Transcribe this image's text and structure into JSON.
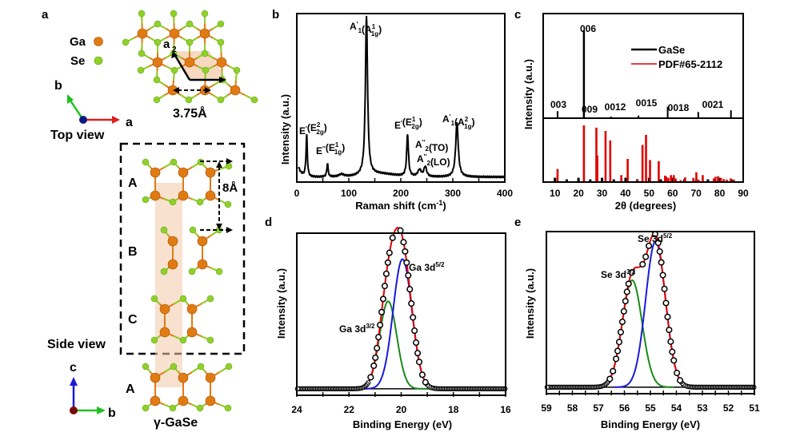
{
  "figure": {
    "panel_labels": [
      "a",
      "b",
      "c",
      "d",
      "e"
    ]
  },
  "panel_a": {
    "legend": [
      {
        "label": "Ga",
        "color": "#e07b14"
      },
      {
        "label": "Se",
        "color": "#8fd12a"
      }
    ],
    "top_view": {
      "lattice_vector_label": "a",
      "lattice_vector_sub": "2",
      "lattice_constant": "3.75Å",
      "axes": {
        "b": "b",
        "a": "a"
      },
      "caption": "Top view"
    },
    "side_view": {
      "layers": [
        "A",
        "B",
        "C",
        "A"
      ],
      "spacing": "8Å",
      "caption": "Side view",
      "axes": {
        "c": "c",
        "b": "b"
      },
      "phase": "γ-GaSe"
    },
    "colors": {
      "ga": "#e07b14",
      "se": "#8fd12a",
      "cell": "#f4c9a8",
      "axis_a": "#e02020",
      "axis_b": "#22c022",
      "axis_c": "#1a1ad8",
      "origin_top": "#0a1a80",
      "origin_side": "#7a0a0a"
    }
  },
  "chart_data": [
    {
      "id": "b",
      "type": "line",
      "title": "",
      "xlabel": "Raman shift (cm⁻¹)",
      "ylabel": "Intensity (a.u.)",
      "xlim": [
        0,
        400
      ],
      "xticks": [
        0,
        100,
        200,
        300,
        400
      ],
      "minor_xticks": [
        50,
        150,
        250,
        350
      ],
      "ylim": [
        0,
        1
      ],
      "grid": false,
      "series": [
        {
          "name": "Raman",
          "color": "#000000",
          "baseline": 0.03,
          "peaks": [
            {
              "x": 19,
              "height": 0.25,
              "width": 1.5
            },
            {
              "x": 59,
              "height": 0.08,
              "width": 1.5
            },
            {
              "x": 86,
              "height": 0.015,
              "width": 6
            },
            {
              "x": 134,
              "height": 0.94,
              "width": 2.5
            },
            {
              "x": 213,
              "height": 0.25,
              "width": 2
            },
            {
              "x": 236,
              "height": 0.04,
              "width": 4
            },
            {
              "x": 247,
              "height": 0.06,
              "width": 3
            },
            {
              "x": 308,
              "height": 0.32,
              "width": 3
            }
          ]
        }
      ],
      "annotations": [
        {
          "x": 19,
          "main": "E",
          "prime": "'",
          "paren": "E",
          "sup": "2",
          "sub": "2g"
        },
        {
          "x": 59,
          "main": "E",
          "prime": "''",
          "paren": "E",
          "sup": "1",
          "sub": "1g"
        },
        {
          "x": 134,
          "main": "A",
          "mainsub": "1",
          "prime": "'",
          "paren": "A",
          "sup": "1",
          "sub": "1g"
        },
        {
          "x": 213,
          "main": "E",
          "prime": "'",
          "paren": "E",
          "sup": "1",
          "sub": "2g"
        },
        {
          "x": 236,
          "main": "A",
          "mainsub": "2",
          "prime": "''",
          "text": "(TO)"
        },
        {
          "x": 247,
          "main": "A",
          "mainsub": "2",
          "prime": "''",
          "text": "(LO)"
        },
        {
          "x": 308,
          "main": "A",
          "mainsub": "1",
          "prime": "'",
          "paren": "A",
          "sup": "2",
          "sub": "1g"
        }
      ]
    },
    {
      "id": "c",
      "type": "bar",
      "title": "",
      "xlabel": "2θ (degrees)",
      "ylabel": "Intensity (a.u.)",
      "xlim": [
        5,
        90
      ],
      "xticks": [
        10,
        20,
        30,
        40,
        50,
        60,
        70,
        80,
        90
      ],
      "grid": false,
      "legend": {
        "position": "top-right",
        "entries": [
          {
            "name": "GaSe",
            "color": "#000000"
          },
          {
            "name": "PDF#65-2112",
            "color": "#e00000"
          }
        ]
      },
      "series": [
        {
          "name": "GaSe",
          "color": "#000000",
          "peaks": [
            {
              "x": 11.1,
              "value": 0.08,
              "label": "003"
            },
            {
              "x": 22.3,
              "value": 1.0,
              "label": "006"
            },
            {
              "x": 33.8,
              "value": 0.005,
              "label": "009"
            },
            {
              "x": 45.5,
              "value": 0.03,
              "label": "0012"
            },
            {
              "x": 57.9,
              "value": 0.13,
              "label": "0015"
            },
            {
              "x": 70.9,
              "value": 0.07,
              "label": "0018"
            },
            {
              "x": 84.8,
              "value": 0.09,
              "label": "0021"
            }
          ]
        },
        {
          "name": "PDF#65-2112",
          "color": "#e00000",
          "x": [
            11.1,
            22.3,
            27.6,
            28.0,
            31.5,
            33.5,
            38.2,
            40.9,
            45.0,
            47.2,
            48.7,
            50.4,
            54.1,
            56.8,
            57.3,
            58.2,
            59.3,
            60.5,
            61.3,
            63.4,
            65.3,
            68.8,
            70.1,
            71.0,
            72.8,
            77.5,
            78.2,
            79.3,
            80.5,
            81.7,
            83.0,
            84.7,
            86.0
          ],
          "values": [
            0.22,
            1.0,
            0.96,
            0.46,
            0.9,
            0.73,
            0.11,
            0.4,
            0.02,
            0.65,
            0.83,
            0.38,
            0.36,
            0.1,
            0.08,
            0.06,
            0.11,
            0.11,
            0.05,
            0.02,
            0.07,
            0.06,
            0.16,
            0.03,
            0.11,
            0.05,
            0.08,
            0.09,
            0.06,
            0.04,
            0.03,
            0.05,
            0.03
          ]
        },
        {
          "name": "reference-ticks",
          "color": "#000000",
          "x": [
            10,
            15,
            20,
            25,
            30,
            35,
            40,
            45,
            50,
            55,
            60,
            65,
            70,
            75,
            80,
            85
          ],
          "values": [
            0.09,
            0.05,
            0.09,
            0.05,
            0.09,
            0.05,
            0.09,
            0.05,
            0.09,
            0.05,
            0.09,
            0.05,
            0.05,
            0.05,
            0.09,
            0.05
          ]
        }
      ]
    },
    {
      "id": "d",
      "type": "line",
      "title": "",
      "xlabel": "Binding Energy (eV)",
      "ylabel": "Intensity (a.u.)",
      "xlim": [
        24,
        16
      ],
      "xticks": [
        24,
        22,
        20,
        18,
        16
      ],
      "minor_xticks": [
        23,
        21,
        19,
        17
      ],
      "ylim": [
        0,
        1
      ],
      "grid": false,
      "baseline": 0.04,
      "components": [
        {
          "name": "Ga 3d3/2",
          "label": "Ga 3d",
          "sup": "3/2",
          "center": 20.5,
          "height": 0.54,
          "sigma": 0.33,
          "color": "#1a8a1a"
        },
        {
          "name": "Ga 3d5/2",
          "label": "Ga 3d",
          "sup": "5/2",
          "center": 19.95,
          "height": 0.8,
          "sigma": 0.36,
          "color": "#1a1ae0"
        }
      ],
      "envelope_color": "#e00000",
      "markers": "open-circle"
    },
    {
      "id": "e",
      "type": "line",
      "title": "",
      "xlabel": "Binding Energy (eV)",
      "ylabel": "Intensity (a.u.)",
      "xlim": [
        59,
        51
      ],
      "xticks": [
        59,
        58,
        57,
        56,
        55,
        54,
        53,
        52,
        51
      ],
      "minor_xticks": [
        58.5,
        57.5,
        56.5,
        55.5,
        54.5,
        53.5,
        52.5,
        51.5
      ],
      "ylim": [
        0,
        1
      ],
      "grid": false,
      "baseline": 0.04,
      "components": [
        {
          "name": "Se 3d3/2",
          "label": "Se 3d",
          "sup": "3/2",
          "center": 55.7,
          "height": 0.66,
          "sigma": 0.38,
          "color": "#1a8a1a"
        },
        {
          "name": "Se 3d5/2",
          "label": "Se 3d",
          "sup": "5/2",
          "center": 54.8,
          "height": 0.9,
          "sigma": 0.38,
          "color": "#1a1ae0"
        }
      ],
      "envelope_color": "#e00000",
      "markers": "open-circle"
    }
  ]
}
